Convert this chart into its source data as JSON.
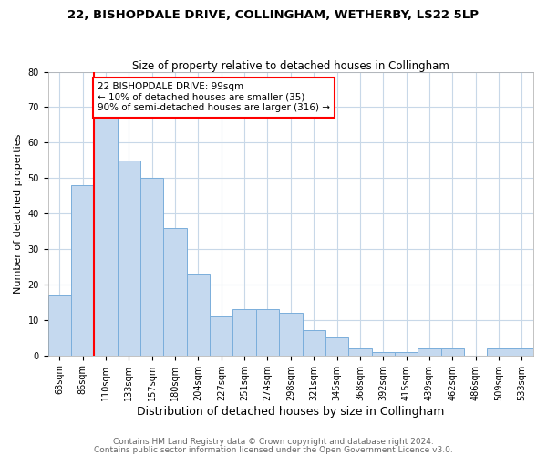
{
  "title1": "22, BISHOPDALE DRIVE, COLLINGHAM, WETHERBY, LS22 5LP",
  "title2": "Size of property relative to detached houses in Collingham",
  "xlabel": "Distribution of detached houses by size in Collingham",
  "ylabel": "Number of detached properties",
  "categories": [
    "63sqm",
    "86sqm",
    "110sqm",
    "133sqm",
    "157sqm",
    "180sqm",
    "204sqm",
    "227sqm",
    "251sqm",
    "274sqm",
    "298sqm",
    "321sqm",
    "345sqm",
    "368sqm",
    "392sqm",
    "415sqm",
    "439sqm",
    "462sqm",
    "486sqm",
    "509sqm",
    "533sqm"
  ],
  "values": [
    17,
    48,
    67,
    55,
    50,
    36,
    23,
    11,
    13,
    13,
    12,
    7,
    5,
    2,
    1,
    1,
    2,
    2,
    0,
    2,
    2
  ],
  "bar_color": "#c5d9ef",
  "bar_edgecolor": "#7aaedb",
  "red_line_index": 2,
  "annotation_line1": "22 BISHOPDALE DRIVE: 99sqm",
  "annotation_line2": "← 10% of detached houses are smaller (35)",
  "annotation_line3": "90% of semi-detached houses are larger (316) →",
  "annotation_box_color": "white",
  "annotation_box_edgecolor": "red",
  "ylim": [
    0,
    80
  ],
  "yticks": [
    0,
    10,
    20,
    30,
    40,
    50,
    60,
    70,
    80
  ],
  "grid_color": "#c8d8e8",
  "footnote1": "Contains HM Land Registry data © Crown copyright and database right 2024.",
  "footnote2": "Contains public sector information licensed under the Open Government Licence v3.0.",
  "bg_color": "#ffffff",
  "title1_fontsize": 9.5,
  "title2_fontsize": 8.5,
  "xlabel_fontsize": 9,
  "ylabel_fontsize": 8,
  "tick_fontsize": 7,
  "annotation_fontsize": 7.5,
  "footnote_fontsize": 6.5
}
